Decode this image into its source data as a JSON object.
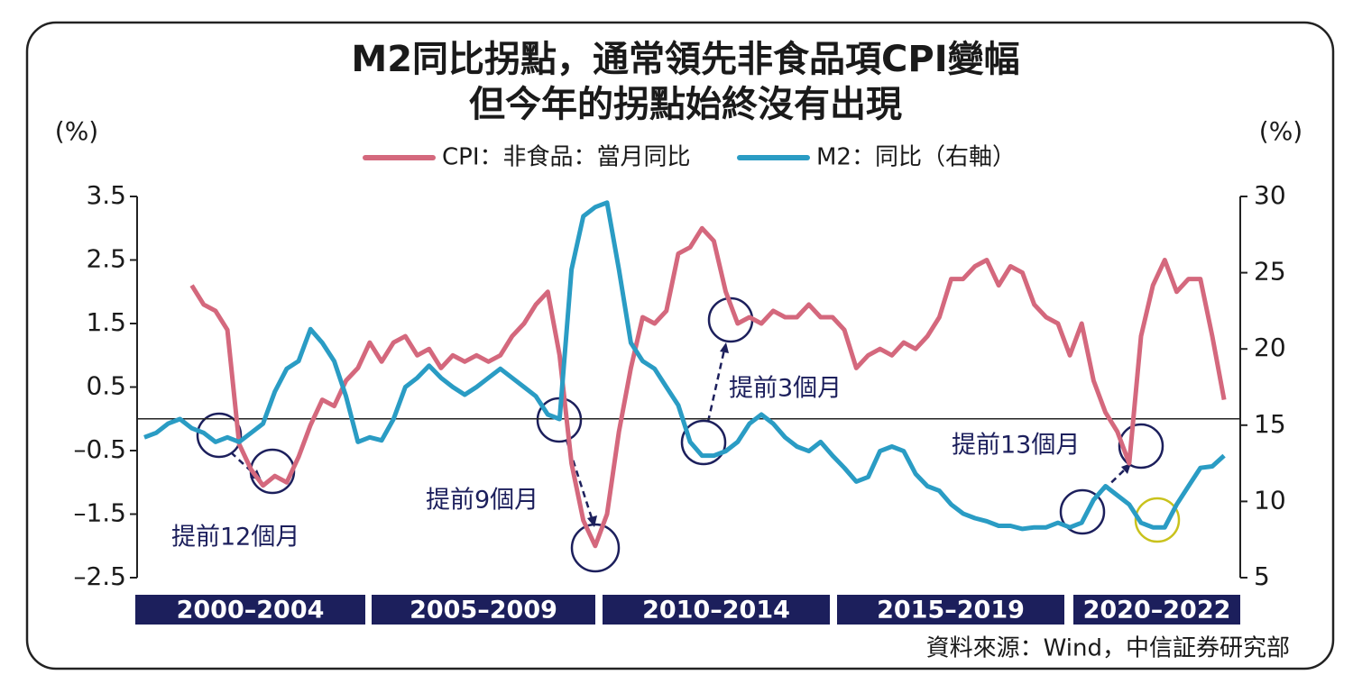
{
  "chart_data": {
    "type": "line",
    "title": "M2同比拐點，通常領先非食品項CPI變幅",
    "subtitle": "但今年的拐點始終沒有出現",
    "y_label": "(%)",
    "y2_label": "(%)",
    "x": [
      2000,
      2000.25,
      2000.5,
      2000.75,
      2001,
      2001.25,
      2001.5,
      2001.75,
      2002,
      2002.25,
      2002.5,
      2002.75,
      2003,
      2003.25,
      2003.5,
      2003.75,
      2004,
      2004.25,
      2004.5,
      2004.75,
      2005,
      2005.25,
      2005.5,
      2005.75,
      2006,
      2006.25,
      2006.5,
      2006.75,
      2007,
      2007.25,
      2007.5,
      2007.75,
      2008,
      2008.25,
      2008.5,
      2008.75,
      2009,
      2009.25,
      2009.5,
      2009.75,
      2010,
      2010.25,
      2010.5,
      2010.75,
      2011,
      2011.25,
      2011.5,
      2011.75,
      2012,
      2012.25,
      2012.5,
      2012.75,
      2013,
      2013.25,
      2013.5,
      2013.75,
      2014,
      2014.25,
      2014.5,
      2014.75,
      2015,
      2015.25,
      2015.5,
      2015.75,
      2016,
      2016.25,
      2016.5,
      2016.75,
      2017,
      2017.25,
      2017.5,
      2017.75,
      2018,
      2018.25,
      2018.5,
      2018.75,
      2019,
      2019.25,
      2019.5,
      2019.75,
      2020,
      2020.25,
      2020.5,
      2020.75,
      2021,
      2021.25,
      2021.5,
      2021.75,
      2022,
      2022.25,
      2022.5,
      2022.75
    ],
    "xlim": [
      2000,
      2022.9
    ],
    "x_bands": [
      "2000–2004",
      "2005–2009",
      "2010–2014",
      "2015–2019",
      "2020–2022"
    ],
    "series": [
      {
        "name": "CPI：非食品：當月同比",
        "color": "#d4687d",
        "values": [
          null,
          null,
          null,
          null,
          2.1,
          1.8,
          1.7,
          1.4,
          -0.4,
          -0.8,
          -1.05,
          -0.9,
          -1.0,
          -0.6,
          -0.1,
          0.3,
          0.2,
          0.6,
          0.8,
          1.2,
          0.9,
          1.2,
          1.3,
          1.0,
          1.1,
          0.8,
          1.0,
          0.9,
          1.0,
          0.9,
          1.0,
          1.3,
          1.5,
          1.8,
          2.0,
          1.0,
          -0.7,
          -1.6,
          -2.0,
          -1.5,
          -0.2,
          0.8,
          1.6,
          1.5,
          1.7,
          2.6,
          2.7,
          3.0,
          2.8,
          2.0,
          1.5,
          1.6,
          1.5,
          1.7,
          1.6,
          1.6,
          1.8,
          1.6,
          1.6,
          1.4,
          0.8,
          1.0,
          1.1,
          1.0,
          1.2,
          1.1,
          1.3,
          1.6,
          2.2,
          2.2,
          2.4,
          2.5,
          2.1,
          2.4,
          2.3,
          1.8,
          1.6,
          1.5,
          1.0,
          1.5,
          0.6,
          0.1,
          -0.2,
          -0.7,
          1.3,
          2.1,
          2.5,
          2.0,
          2.2,
          2.2,
          1.3,
          0.3
        ]
      },
      {
        "name": "M2：同比（右軸）",
        "color": "#2a9cc4",
        "axis": "y2",
        "values": [
          14.2,
          14.5,
          15.1,
          15.4,
          14.8,
          14.5,
          13.9,
          14.2,
          13.9,
          14.5,
          15.1,
          17.2,
          18.7,
          19.2,
          21.3,
          20.4,
          19.2,
          16.9,
          13.9,
          14.2,
          14.0,
          15.4,
          17.5,
          18.1,
          18.9,
          18.1,
          17.5,
          17.0,
          17.5,
          18.1,
          18.7,
          18.1,
          17.5,
          16.9,
          15.7,
          15.4,
          25.2,
          28.7,
          29.3,
          29.6,
          25.2,
          20.4,
          19.2,
          18.7,
          17.5,
          16.3,
          13.9,
          13.0,
          13.0,
          13.3,
          13.9,
          15.1,
          15.7,
          15.1,
          14.2,
          13.6,
          13.3,
          13.9,
          13.0,
          12.2,
          11.3,
          11.6,
          13.3,
          13.6,
          13.3,
          11.8,
          11.0,
          10.7,
          9.8,
          9.2,
          8.9,
          8.7,
          8.4,
          8.4,
          8.2,
          8.3,
          8.3,
          8.6,
          8.3,
          8.6,
          10.1,
          11.0,
          10.4,
          9.8,
          8.6,
          8.3,
          8.3,
          9.8,
          11.0,
          12.2,
          12.3,
          13.0
        ]
      }
    ],
    "ylim": [
      -2.5,
      3.5
    ],
    "yticks": [
      3.5,
      2.5,
      1.5,
      0.5,
      {
        "value": -0.5,
        "label": "–0.5"
      },
      {
        "value": -1.5,
        "label": "–1.5"
      },
      {
        "value": -2.5,
        "label": "–2.5"
      }
    ],
    "y2lim": [
      5,
      30
    ],
    "y2ticks": [
      30,
      25,
      20,
      15,
      10,
      5
    ],
    "annotations": [
      "提前12個月",
      "提前9個月",
      "提前3個月",
      "提前13個月"
    ],
    "source": "資料來源：Wind，中信証券研究部"
  }
}
